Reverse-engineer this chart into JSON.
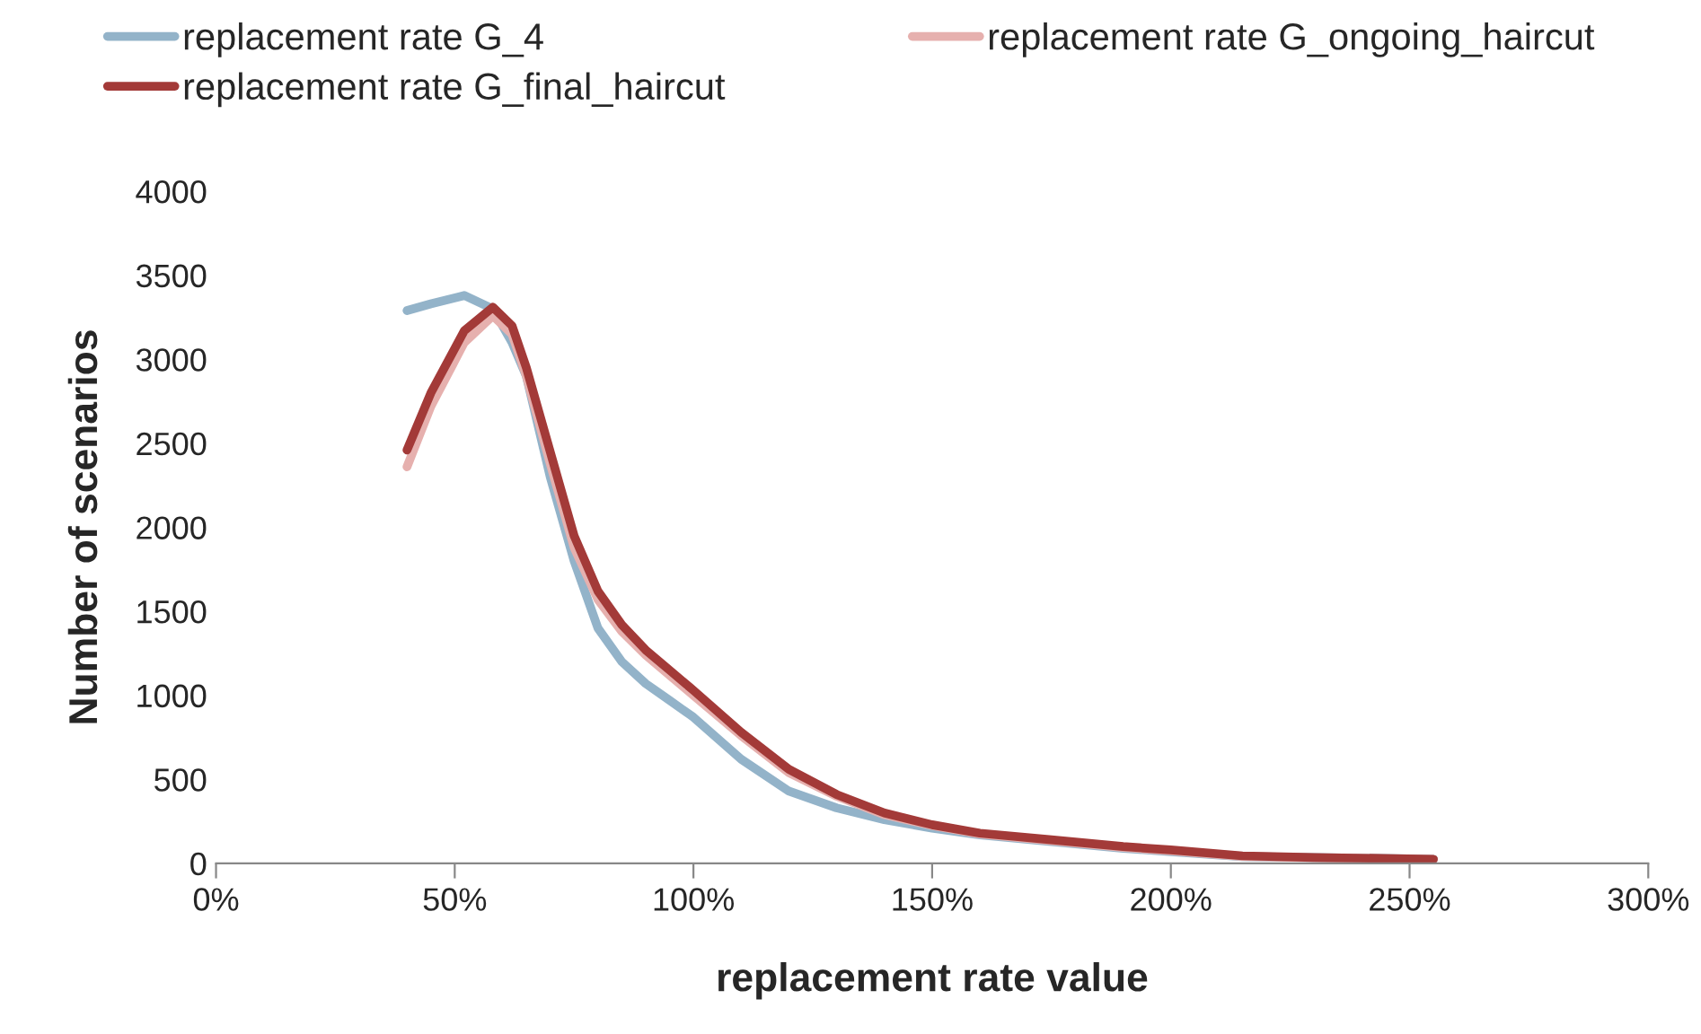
{
  "chart_data": {
    "type": "line",
    "xlabel": "replacement rate value",
    "ylabel": "Number of scenarios",
    "xlim": [
      0,
      300
    ],
    "xticks": [
      {
        "value": 0,
        "label": "0%"
      },
      {
        "value": 50,
        "label": "50%"
      },
      {
        "value": 100,
        "label": "100%"
      },
      {
        "value": 150,
        "label": "150%"
      },
      {
        "value": 200,
        "label": "200%"
      },
      {
        "value": 250,
        "label": "250%"
      },
      {
        "value": 300,
        "label": "300%"
      }
    ],
    "ylim": [
      0,
      4000
    ],
    "yticks": [
      0,
      500,
      1000,
      1500,
      2000,
      2500,
      3000,
      3500,
      4000
    ],
    "grid": false,
    "legend": "top",
    "marker": "none",
    "line_style": "solid",
    "x": [
      40,
      45,
      52,
      58,
      62,
      65,
      70,
      75,
      80,
      85,
      90,
      95,
      100,
      110,
      120,
      130,
      140,
      150,
      160,
      175,
      190,
      200,
      215,
      230,
      255
    ],
    "series": [
      {
        "name": "replacement rate G_4",
        "color": "#93b3c9",
        "values": [
          3290,
          3330,
          3380,
          3300,
          3100,
          2900,
          2300,
          1800,
          1400,
          1200,
          1070,
          970,
          870,
          620,
          430,
          330,
          260,
          210,
          170,
          130,
          90,
          70,
          40,
          35,
          25
        ]
      },
      {
        "name": "replacement rate G_ongoing_haircut",
        "color": "#e6b0ae",
        "values": [
          2360,
          2720,
          3100,
          3260,
          3150,
          2900,
          2380,
          1880,
          1570,
          1380,
          1240,
          1120,
          1000,
          760,
          540,
          400,
          290,
          225,
          175,
          135,
          95,
          75,
          42,
          33,
          23
        ]
      },
      {
        "name": "replacement rate G_final_haircut",
        "color": "#a33a38",
        "values": [
          2460,
          2800,
          3170,
          3310,
          3200,
          2950,
          2450,
          1950,
          1620,
          1420,
          1270,
          1150,
          1030,
          780,
          560,
          410,
          300,
          230,
          180,
          140,
          100,
          80,
          45,
          35,
          25
        ]
      }
    ]
  }
}
